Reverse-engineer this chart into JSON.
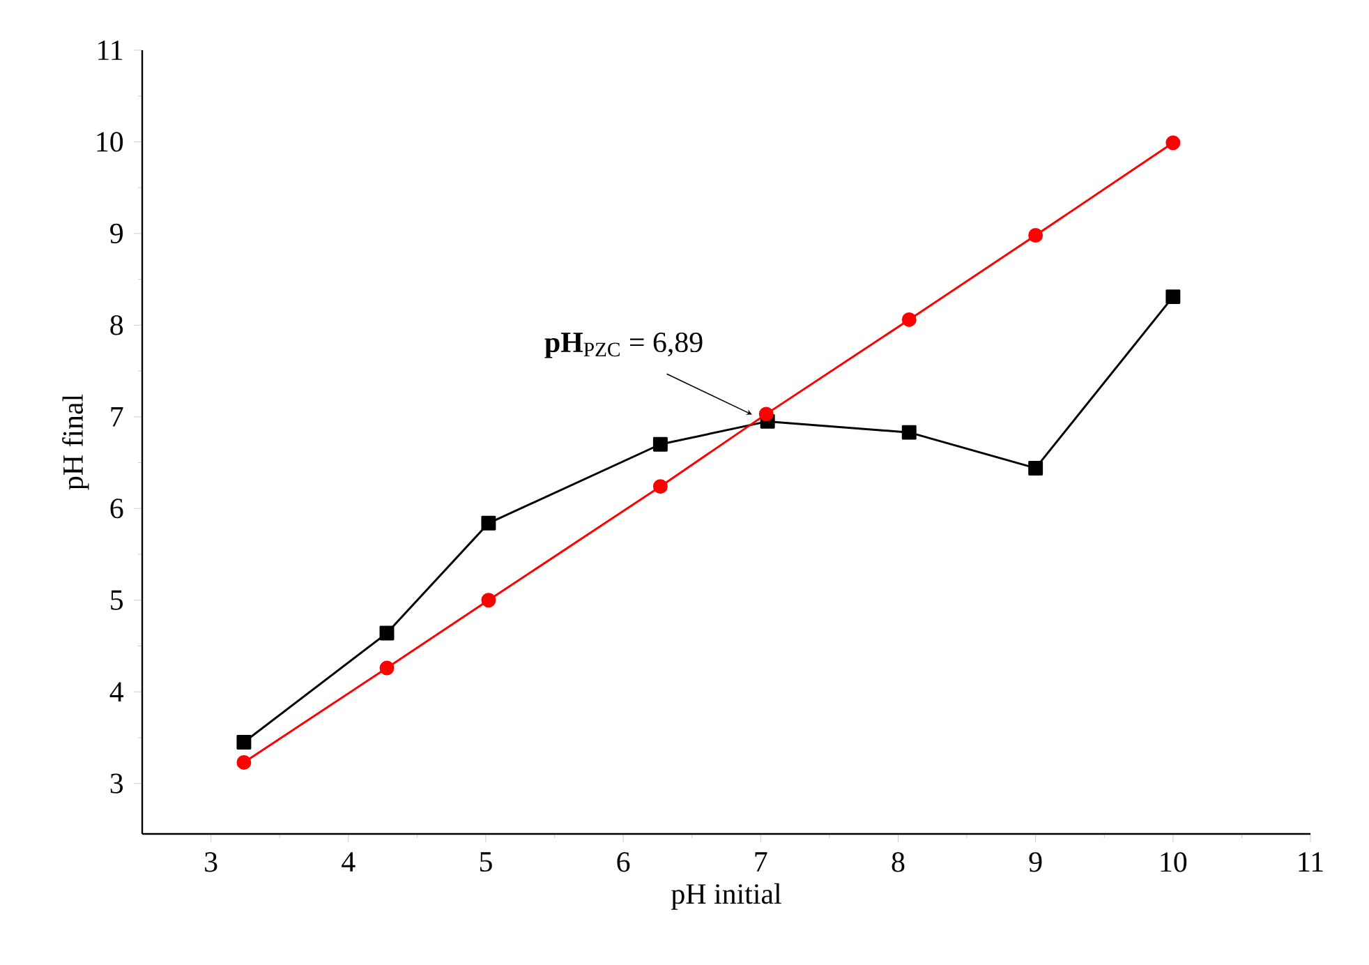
{
  "chart_data": {
    "type": "line",
    "xlabel": "pH initial",
    "ylabel": "pH final",
    "series": [
      {
        "color": "#000000",
        "marker": "square",
        "x": [
          3.24,
          4.28,
          5.02,
          6.27,
          7.05,
          8.08,
          9.0,
          10.0
        ],
        "values": [
          3.45,
          4.64,
          5.84,
          6.7,
          6.95,
          6.83,
          6.44,
          8.31
        ]
      },
      {
        "color": "#ff0000",
        "marker": "circle",
        "x": [
          3.24,
          4.28,
          5.02,
          6.27,
          7.04,
          8.08,
          9.0,
          10.0
        ],
        "values": [
          3.23,
          4.26,
          5.0,
          6.24,
          7.03,
          8.06,
          8.98,
          9.99
        ]
      }
    ],
    "annotations": [
      "**pH**$_{PZC}$ = 6,89"
    ],
    "xlim": [
      2.5,
      11
    ],
    "ylim": [
      2.45,
      11
    ],
    "xticks": [
      3,
      4,
      5,
      6,
      7,
      8,
      9,
      10,
      11
    ],
    "yticks": [
      3,
      4,
      5,
      6,
      7,
      8,
      9,
      10,
      11
    ],
    "line_style": "solid"
  }
}
